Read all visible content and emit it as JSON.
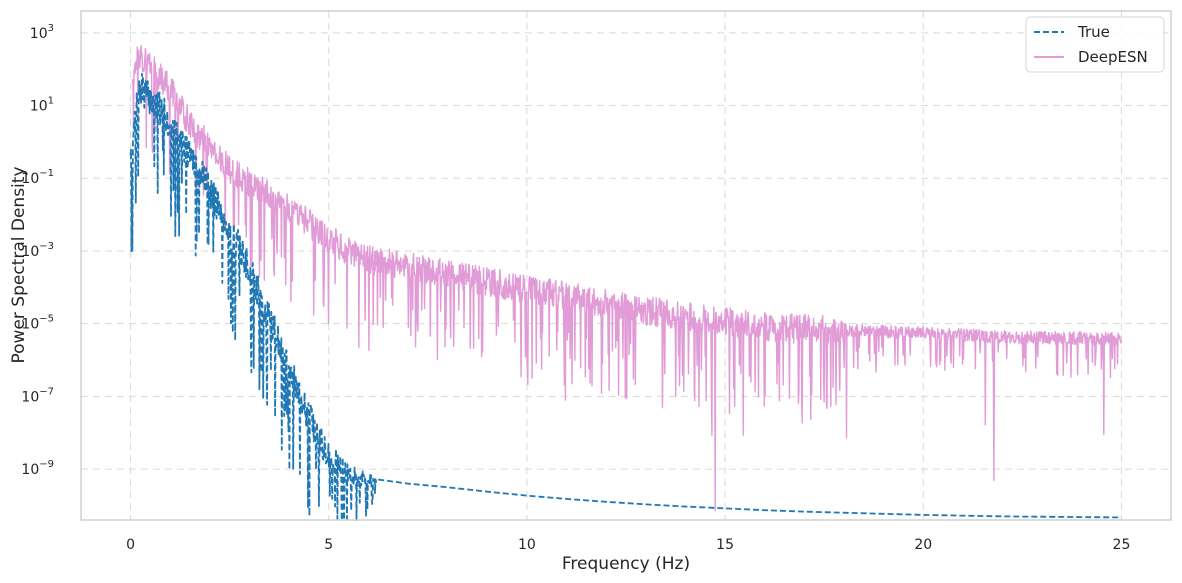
{
  "chart_data": {
    "type": "line",
    "title": "",
    "xlabel": "Frequency (Hz)",
    "ylabel": "Power Spectral Density",
    "xlim": [
      -1.25,
      26.25
    ],
    "ylim_log10": [
      -10.4,
      3.6
    ],
    "yscale": "log",
    "grid": true,
    "legend_position": "top-right",
    "x_ticks": [
      {
        "value": 0,
        "label": "0"
      },
      {
        "value": 5,
        "label": "5"
      },
      {
        "value": 10,
        "label": "10"
      },
      {
        "value": 15,
        "label": "15"
      },
      {
        "value": 20,
        "label": "20"
      },
      {
        "value": 25,
        "label": "25"
      }
    ],
    "y_ticks": [
      {
        "exp": 3,
        "base": "10",
        "label": "3"
      },
      {
        "exp": 1,
        "base": "10",
        "label": "1"
      },
      {
        "exp": -1,
        "base": "10",
        "label": "−1"
      },
      {
        "exp": -3,
        "base": "10",
        "label": "−3"
      },
      {
        "exp": -5,
        "base": "10",
        "label": "−5"
      },
      {
        "exp": -7,
        "base": "10",
        "label": "−7"
      },
      {
        "exp": -9,
        "base": "10",
        "label": "−9"
      }
    ],
    "series": [
      {
        "name": "True",
        "color": "#1f77b4",
        "style": "dashed",
        "points_log10": [
          [
            0.0,
            -0.7
          ],
          [
            0.1,
            0.5
          ],
          [
            0.2,
            1.3
          ],
          [
            0.3,
            1.5
          ],
          [
            0.5,
            1.2
          ],
          [
            0.8,
            0.9
          ],
          [
            1.0,
            0.5
          ],
          [
            1.2,
            0.1
          ],
          [
            1.5,
            -0.3
          ],
          [
            1.8,
            -0.8
          ],
          [
            2.0,
            -1.3
          ],
          [
            2.3,
            -1.9
          ],
          [
            2.5,
            -2.4
          ],
          [
            2.8,
            -3.0
          ],
          [
            3.0,
            -3.5
          ],
          [
            3.3,
            -4.3
          ],
          [
            3.5,
            -4.8
          ],
          [
            3.8,
            -5.6
          ],
          [
            4.0,
            -6.2
          ],
          [
            4.3,
            -7.0
          ],
          [
            4.5,
            -7.5
          ],
          [
            4.8,
            -8.1
          ],
          [
            5.0,
            -8.6
          ],
          [
            5.3,
            -9.0
          ],
          [
            5.6,
            -9.2
          ],
          [
            6.0,
            -9.25
          ],
          [
            7.0,
            -9.4
          ],
          [
            8.0,
            -9.5
          ],
          [
            9.0,
            -9.62
          ],
          [
            10.0,
            -9.73
          ],
          [
            11.0,
            -9.82
          ],
          [
            12.0,
            -9.9
          ],
          [
            13.0,
            -9.97
          ],
          [
            14.0,
            -10.03
          ],
          [
            15.0,
            -10.08
          ],
          [
            16.0,
            -10.13
          ],
          [
            17.0,
            -10.17
          ],
          [
            18.0,
            -10.2
          ],
          [
            19.0,
            -10.23
          ],
          [
            20.0,
            -10.26
          ],
          [
            21.0,
            -10.28
          ],
          [
            22.0,
            -10.3
          ],
          [
            23.0,
            -10.31
          ],
          [
            24.0,
            -10.32
          ],
          [
            25.0,
            -10.33
          ]
        ],
        "noise": {
          "until_x": 6.2,
          "amplitude": 0.9,
          "dip_min_log10": -10.3
        }
      },
      {
        "name": "DeepESN",
        "color": "#e19bd6",
        "style": "solid",
        "points_log10": [
          [
            0.05,
            1.8
          ],
          [
            0.2,
            2.5
          ],
          [
            0.4,
            2.2
          ],
          [
            0.7,
            1.9
          ],
          [
            1.0,
            1.5
          ],
          [
            1.3,
            0.9
          ],
          [
            1.6,
            0.4
          ],
          [
            2.0,
            -0.1
          ],
          [
            2.5,
            -0.7
          ],
          [
            3.0,
            -1.1
          ],
          [
            3.5,
            -1.4
          ],
          [
            4.0,
            -1.8
          ],
          [
            4.5,
            -2.2
          ],
          [
            5.0,
            -2.6
          ],
          [
            5.5,
            -3.0
          ],
          [
            6.0,
            -3.2
          ],
          [
            7.0,
            -3.4
          ],
          [
            8.0,
            -3.6
          ],
          [
            9.0,
            -3.8
          ],
          [
            10.0,
            -4.0
          ],
          [
            11.0,
            -4.2
          ],
          [
            12.0,
            -4.4
          ],
          [
            13.0,
            -4.6
          ],
          [
            14.0,
            -4.75
          ],
          [
            15.0,
            -4.9
          ],
          [
            16.0,
            -5.05
          ],
          [
            17.0,
            -5.1
          ],
          [
            18.0,
            -5.15
          ],
          [
            19.0,
            -5.2
          ],
          [
            20.0,
            -5.25
          ],
          [
            21.0,
            -5.3
          ],
          [
            22.0,
            -5.35
          ],
          [
            23.0,
            -5.37
          ],
          [
            24.0,
            -5.38
          ],
          [
            25.0,
            -5.38
          ]
        ],
        "noise": {
          "until_x": 25.0,
          "amplitude": 0.8,
          "deep_dip_x": 14.75,
          "deep_dip_log10": -10.15
        }
      }
    ]
  }
}
